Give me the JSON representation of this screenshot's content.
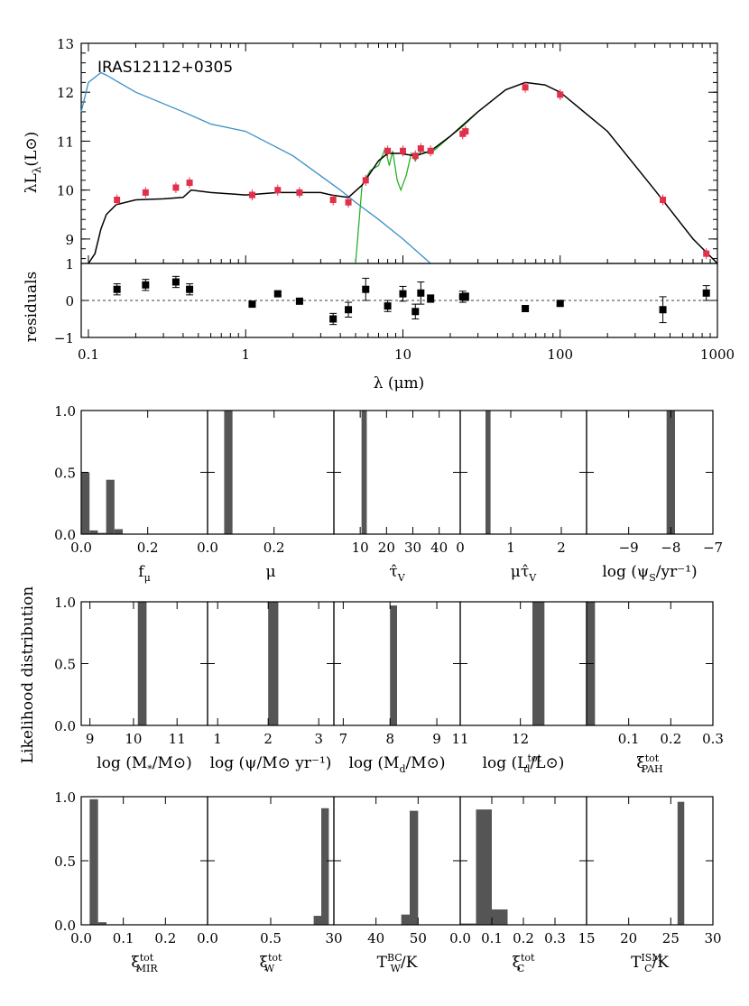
{
  "chart_data": [
    {
      "type": "scatter",
      "title": "IRAS12112+0305",
      "panel": "sed",
      "xscale": "log",
      "xlabel": "λ (μm)",
      "ylabel": "λL",
      "xlim": [
        0.09,
        1000
      ],
      "ylim": [
        8.5,
        13
      ],
      "xticks": [
        0.1,
        1,
        10,
        100,
        1000
      ],
      "xtick_labels": [
        "0.1",
        "1",
        "10",
        "100",
        "1000"
      ],
      "yticks": [
        9,
        10,
        11,
        12,
        13
      ],
      "ytick_labels": [
        "9",
        "10",
        "11",
        "12",
        "13"
      ],
      "colors": {
        "observed": "#e0304a",
        "model": "#000000",
        "unattenuated": "#3a8fc8",
        "spectrum": "#2ab02a"
      },
      "observed": {
        "x": [
          0.152,
          0.231,
          0.36,
          0.44,
          1.1,
          1.6,
          2.2,
          3.6,
          4.5,
          5.8,
          8.0,
          10.0,
          12.0,
          13.0,
          15.0,
          24.0,
          25.0,
          60.0,
          100.0,
          450.0,
          850.0
        ],
        "y": [
          9.8,
          9.95,
          10.05,
          10.15,
          9.9,
          10.0,
          9.95,
          9.8,
          9.75,
          10.2,
          10.8,
          10.8,
          10.7,
          10.85,
          10.8,
          11.15,
          11.2,
          12.1,
          11.95,
          9.8,
          8.7
        ]
      },
      "model": {
        "x": [
          0.1,
          0.11,
          0.12,
          0.13,
          0.15,
          0.2,
          0.3,
          0.4,
          0.45,
          0.6,
          1.0,
          1.6,
          2.2,
          3.0,
          3.5,
          4.5,
          5.5,
          7.0,
          8.0,
          9.5,
          12.0,
          15.0,
          20.0,
          30.0,
          45.0,
          60.0,
          80.0,
          100.0,
          200.0,
          400.0,
          700.0,
          1000.0
        ],
        "y": [
          8.5,
          8.7,
          9.2,
          9.5,
          9.7,
          9.8,
          9.82,
          9.85,
          10.0,
          9.95,
          9.9,
          9.95,
          9.95,
          9.95,
          9.9,
          9.85,
          10.1,
          10.6,
          10.75,
          10.75,
          10.7,
          10.8,
          11.1,
          11.6,
          12.05,
          12.2,
          12.15,
          12.0,
          11.2,
          10.0,
          9.0,
          8.5
        ]
      },
      "unattenuated": {
        "x": [
          0.09,
          0.1,
          0.12,
          0.13,
          0.2,
          0.4,
          0.6,
          1.0,
          2.0,
          4.0,
          5.0,
          7.0,
          10.0,
          15.0
        ],
        "y": [
          11.6,
          12.2,
          12.4,
          12.35,
          12.0,
          11.6,
          11.35,
          11.2,
          10.7,
          10.0,
          9.75,
          9.4,
          9.0,
          8.5
        ]
      },
      "spectrum": {
        "x": [
          5.0,
          5.5,
          6.2,
          7.0,
          7.7,
          8.2,
          8.6,
          9.2,
          9.7,
          10.5,
          11.3,
          12.0,
          13.0,
          15.0,
          17.0,
          20.0,
          24.0,
          30.0
        ],
        "y": [
          8.5,
          10.1,
          10.4,
          10.5,
          10.85,
          10.5,
          10.8,
          10.2,
          10.0,
          10.3,
          10.75,
          10.6,
          10.8,
          10.75,
          10.9,
          11.1,
          11.3,
          11.6
        ]
      }
    },
    {
      "type": "scatter",
      "panel": "residuals",
      "ylabel": "residuals",
      "xscale": "log",
      "xlim": [
        0.09,
        1000
      ],
      "ylim": [
        -1,
        1
      ],
      "yticks": [
        -1,
        0,
        1
      ],
      "ytick_labels": [
        "−1",
        "0",
        "1"
      ],
      "x": [
        0.152,
        0.231,
        0.36,
        0.44,
        1.1,
        1.6,
        2.2,
        3.6,
        4.5,
        5.8,
        8.0,
        10.0,
        12.0,
        13.0,
        15.0,
        24.0,
        25.0,
        60.0,
        100.0,
        450.0,
        850.0
      ],
      "y": [
        0.3,
        0.42,
        0.5,
        0.3,
        -0.1,
        0.18,
        -0.02,
        -0.5,
        -0.25,
        0.3,
        -0.15,
        0.18,
        -0.3,
        0.2,
        0.05,
        0.1,
        0.1,
        -0.22,
        -0.08,
        -0.25,
        0.2
      ],
      "err": [
        0.15,
        0.15,
        0.15,
        0.15,
        0.05,
        0.05,
        0.05,
        0.15,
        0.2,
        0.3,
        0.15,
        0.2,
        0.2,
        0.3,
        0.1,
        0.15,
        0.1,
        0.05,
        0.05,
        0.35,
        0.2
      ]
    }
  ],
  "likelihood": {
    "ylabel": "Likelihood distribution",
    "yticks": [
      0,
      0.5,
      1
    ],
    "ytick_labels": [
      "0.0",
      "0.5",
      "1.0"
    ],
    "bar_color": "#555555",
    "rows": [
      [
        {
          "xlabel": "f",
          "xsub": "μ",
          "xlim": [
            0,
            0.38
          ],
          "ticks": [
            0,
            0.2
          ],
          "tick_labels": [
            "0.0",
            "0.2"
          ],
          "bars": [
            [
              0,
              0.025,
              0.5
            ],
            [
              0.025,
              0.05,
              0.03
            ],
            [
              0.05,
              0.075,
              0.01
            ],
            [
              0.075,
              0.1,
              0.44
            ],
            [
              0.1,
              0.125,
              0.04
            ]
          ]
        },
        {
          "xlabel": "μ",
          "xlim": [
            0,
            0.38
          ],
          "ticks": [
            0,
            0.2
          ],
          "tick_labels": [
            "0.0",
            "0.2"
          ],
          "bars": [
            [
              0.05,
              0.075,
              1.0
            ]
          ]
        },
        {
          "xlabel": "τ̂",
          "xsub": "V",
          "xlim": [
            0,
            48
          ],
          "ticks": [
            10,
            20,
            30,
            40
          ],
          "tick_labels": [
            "10",
            "20",
            "30",
            "40"
          ],
          "bars": [
            [
              10.5,
              12.5,
              1.0
            ]
          ]
        },
        {
          "xlabel": "μτ̂",
          "xsub": "V",
          "xlim": [
            0,
            2.5
          ],
          "ticks": [
            0,
            1,
            2
          ],
          "tick_labels": [
            "0",
            "1",
            "2"
          ],
          "bars": [
            [
              0.5,
              0.6,
              1.0
            ]
          ]
        },
        {
          "xlabel": "log (ψ",
          "xsub": "S",
          "xlabel2": "/yr⁻¹)",
          "xlim": [
            -10,
            -7
          ],
          "ticks": [
            -9,
            -8,
            -7
          ],
          "tick_labels": [
            "−9",
            "−8",
            "−7"
          ],
          "bars": [
            [
              -8.1,
              -7.9,
              1.0
            ]
          ]
        }
      ],
      [
        {
          "xlabel": "log (M",
          "xsub": "*",
          "xlabel2": "/M⊙)",
          "xlim": [
            8.8,
            11.7
          ],
          "ticks": [
            9,
            10,
            11
          ],
          "tick_labels": [
            "9",
            "10",
            "11"
          ],
          "bars": [
            [
              10.1,
              10.3,
              1.0
            ]
          ]
        },
        {
          "xlabel": "log (ψ/M⊙ yr⁻¹)",
          "xlim": [
            0.8,
            3.3
          ],
          "ticks": [
            1,
            2,
            3
          ],
          "tick_labels": [
            "1",
            "2",
            "3"
          ],
          "bars": [
            [
              2.0,
              2.2,
              1.0
            ]
          ]
        },
        {
          "xlabel": "log (M",
          "xsub": "d",
          "xlabel2": "/M⊙)",
          "xlim": [
            6.8,
            9.5
          ],
          "ticks": [
            7,
            8,
            9
          ],
          "tick_labels": [
            "7",
            "8",
            "9"
          ],
          "bars": [
            [
              8.0,
              8.15,
              0.97
            ]
          ]
        },
        {
          "xlabel": "log (L",
          "xsub": "d",
          "xsup": "tot",
          "xlabel2": "/L⊙)",
          "xlim": [
            11,
            13.1
          ],
          "ticks": [
            11,
            12
          ],
          "tick_labels": [
            "11",
            "12"
          ],
          "bars": [
            [
              12.2,
              12.4,
              1.0
            ]
          ]
        },
        {
          "xlabel": "ξ",
          "xsub": "PAH",
          "xsup": "tot",
          "xlim": [
            0,
            0.3
          ],
          "ticks": [
            0.1,
            0.2,
            0.3
          ],
          "tick_labels": [
            "0.1",
            "0.2",
            "0.3"
          ],
          "bars": [
            [
              0,
              0.02,
              1.0
            ]
          ]
        }
      ],
      [
        {
          "xlabel": "ξ",
          "xsub": "MIR",
          "xsup": "tot",
          "xlim": [
            0,
            0.3
          ],
          "ticks": [
            0,
            0.1,
            0.2
          ],
          "tick_labels": [
            "0.0",
            "0.1",
            "0.2"
          ],
          "bars": [
            [
              0.02,
              0.04,
              0.98
            ],
            [
              0.04,
              0.06,
              0.02
            ]
          ]
        },
        {
          "xlabel": "ξ",
          "xsub": "W",
          "xsup": "tot",
          "xlim": [
            0,
            1.0
          ],
          "ticks": [
            0,
            0.5
          ],
          "tick_labels": [
            "0.0",
            "0.5"
          ],
          "bars": [
            [
              0.84,
              0.9,
              0.07
            ],
            [
              0.9,
              0.96,
              0.91
            ]
          ]
        },
        {
          "xlabel": "T",
          "xsub": "W",
          "xsup": "BC",
          "xlabel2": "/K",
          "xlim": [
            30,
            60
          ],
          "ticks": [
            30,
            40,
            50
          ],
          "tick_labels": [
            "30",
            "40",
            "50"
          ],
          "bars": [
            [
              46,
              48,
              0.08
            ],
            [
              48,
              50,
              0.89
            ]
          ]
        },
        {
          "xlabel": "ξ",
          "xsub": "C",
          "xsup": "tot",
          "xlim": [
            0,
            0.4
          ],
          "ticks": [
            0,
            0.1,
            0.2,
            0.3
          ],
          "tick_labels": [
            "0.0",
            "0.1",
            "0.2",
            "0.3"
          ],
          "bars": [
            [
              0.0,
              0.05,
              0.01
            ],
            [
              0.05,
              0.1,
              0.9
            ],
            [
              0.1,
              0.15,
              0.12
            ]
          ]
        },
        {
          "xlabel": "T",
          "xsub": "C",
          "xsup": "ISM",
          "xlabel2": "/K",
          "xlim": [
            15,
            30
          ],
          "ticks": [
            15,
            20,
            25,
            30
          ],
          "tick_labels": [
            "15",
            "20",
            "25",
            "30"
          ],
          "bars": [
            [
              25.8,
              26.6,
              0.96
            ]
          ]
        }
      ]
    ]
  },
  "labels": {
    "lambda_L": "λL",
    "lambda_sub": "λ",
    "lsun": "(L⊙)"
  }
}
